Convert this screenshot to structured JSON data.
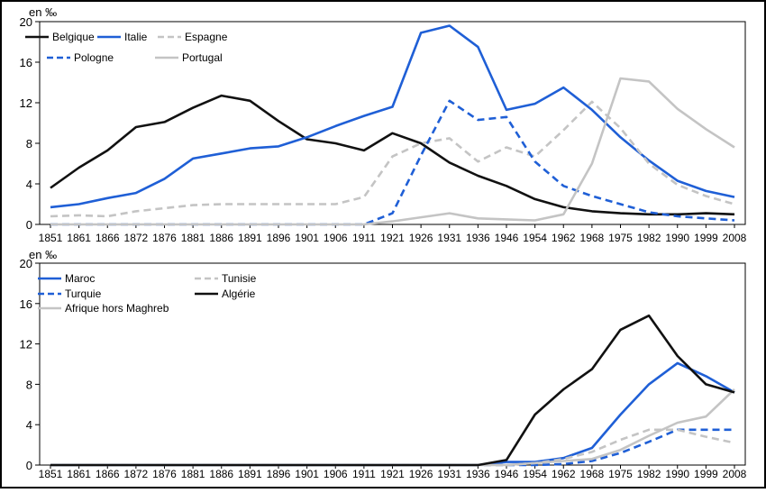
{
  "chart_data": [
    {
      "type": "line",
      "unit_label": "en ‰",
      "ylim": [
        0,
        20
      ],
      "yticks": [
        0,
        4,
        8,
        12,
        16,
        20
      ],
      "categories": [
        "1851",
        "1861",
        "1866",
        "1872",
        "1876",
        "1881",
        "1886",
        "1891",
        "1896",
        "1901",
        "1906",
        "1911",
        "1921",
        "1926",
        "1931",
        "1936",
        "1946",
        "1954",
        "1962",
        "1968",
        "1975",
        "1982",
        "1990",
        "1999",
        "2008"
      ],
      "x_positions": [
        1851,
        1861,
        1866,
        1872,
        1876,
        1881,
        1886,
        1891,
        1896,
        1901,
        1906,
        1911,
        1921,
        1926,
        1931,
        1936,
        1946,
        1954,
        1962,
        1968,
        1975,
        1982,
        1990,
        1999,
        2008
      ],
      "legend_position": "top-left",
      "series": [
        {
          "name": "Belgique",
          "color": "#111111",
          "dash": "solid",
          "x": [
            1851,
            1861,
            1866,
            1872,
            1876,
            1881,
            1886,
            1891,
            1896,
            1901,
            1906,
            1911,
            1921,
            1926,
            1931,
            1936,
            1946,
            1954,
            1962,
            1968,
            1975,
            1982,
            1990,
            1999,
            2008
          ],
          "values": [
            3.6,
            5.6,
            7.3,
            9.6,
            10.1,
            11.5,
            12.7,
            12.2,
            10.2,
            8.4,
            8.0,
            7.3,
            9.0,
            8.0,
            6.1,
            4.8,
            3.8,
            2.5,
            1.7,
            1.3,
            1.1,
            1.0,
            1.0,
            1.1,
            1.0
          ]
        },
        {
          "name": "Italie",
          "color": "#1f5fd6",
          "dash": "solid",
          "x": [
            1851,
            1861,
            1866,
            1872,
            1876,
            1881,
            1886,
            1891,
            1896,
            1901,
            1906,
            1911,
            1921,
            1926,
            1931,
            1936,
            1946,
            1954,
            1962,
            1968,
            1975,
            1982,
            1990,
            1999,
            2008
          ],
          "values": [
            1.7,
            2.0,
            2.6,
            3.1,
            4.5,
            6.5,
            7.0,
            7.5,
            7.7,
            8.6,
            9.7,
            10.7,
            11.6,
            18.9,
            19.6,
            17.5,
            11.3,
            11.9,
            13.5,
            11.3,
            8.6,
            6.3,
            4.3,
            3.3,
            2.7
          ]
        },
        {
          "name": "Espagne",
          "color": "#c4c4c4",
          "dash": "dashed",
          "x": [
            1851,
            1861,
            1866,
            1872,
            1876,
            1881,
            1886,
            1891,
            1896,
            1901,
            1906,
            1911,
            1921,
            1926,
            1931,
            1936,
            1946,
            1954,
            1962,
            1968,
            1975,
            1982,
            1990,
            1999,
            2008
          ],
          "values": [
            0.8,
            0.9,
            0.8,
            1.3,
            1.6,
            1.9,
            2.0,
            2.0,
            2.0,
            2.0,
            2.0,
            2.7,
            6.7,
            8.0,
            8.5,
            6.2,
            7.6,
            6.7,
            9.3,
            12.1,
            9.5,
            6.0,
            3.9,
            2.8,
            2.0
          ]
        },
        {
          "name": "Pologne",
          "color": "#1f5fd6",
          "dash": "dashed",
          "x": [
            1851,
            1861,
            1866,
            1872,
            1876,
            1881,
            1886,
            1891,
            1896,
            1901,
            1906,
            1911,
            1921,
            1926,
            1931,
            1936,
            1946,
            1954,
            1962,
            1968,
            1975,
            1982,
            1990,
            1999,
            2008
          ],
          "values": [
            0,
            0,
            0,
            0,
            0,
            0,
            0,
            0,
            0,
            0,
            0,
            0,
            1.1,
            6.8,
            12.2,
            10.3,
            10.6,
            6.2,
            3.8,
            2.8,
            2.0,
            1.2,
            0.8,
            0.6,
            0.4
          ]
        },
        {
          "name": "Portugal",
          "color": "#c4c4c4",
          "dash": "solid",
          "x": [
            1851,
            1861,
            1866,
            1872,
            1876,
            1881,
            1886,
            1891,
            1896,
            1901,
            1906,
            1911,
            1921,
            1926,
            1931,
            1936,
            1946,
            1954,
            1962,
            1968,
            1975,
            1982,
            1990,
            1999,
            2008
          ],
          "values": [
            0,
            0,
            0,
            0,
            0,
            0,
            0,
            0,
            0,
            0,
            0,
            0,
            0.3,
            0.7,
            1.1,
            0.6,
            0.5,
            0.4,
            1.0,
            6.0,
            14.4,
            14.1,
            11.4,
            9.4,
            7.6
          ]
        }
      ]
    },
    {
      "type": "line",
      "unit_label": "en ‰",
      "ylim": [
        0,
        20
      ],
      "yticks": [
        0,
        4,
        8,
        12,
        16,
        20
      ],
      "categories": [
        "1851",
        "1861",
        "1866",
        "1872",
        "1876",
        "1881",
        "1886",
        "1891",
        "1896",
        "1901",
        "1906",
        "1911",
        "1921",
        "1926",
        "1931",
        "1936",
        "1946",
        "1954",
        "1962",
        "1968",
        "1975",
        "1982",
        "1990",
        "1999",
        "2008"
      ],
      "x_positions": [
        1851,
        1861,
        1866,
        1872,
        1876,
        1881,
        1886,
        1891,
        1896,
        1901,
        1906,
        1911,
        1921,
        1926,
        1931,
        1936,
        1946,
        1954,
        1962,
        1968,
        1975,
        1982,
        1990,
        1999,
        2008
      ],
      "legend_position": "top-left",
      "series": [
        {
          "name": "Maroc",
          "color": "#1f5fd6",
          "dash": "solid",
          "x": [
            1851,
            1936,
            1946,
            1954,
            1962,
            1968,
            1975,
            1982,
            1990,
            1999,
            2008
          ],
          "values": [
            0,
            0,
            0.3,
            0.3,
            0.7,
            1.7,
            5.0,
            8.0,
            10.1,
            8.8,
            7.2
          ]
        },
        {
          "name": "Turquie",
          "color": "#1f5fd6",
          "dash": "dashed",
          "x": [
            1851,
            1954,
            1962,
            1968,
            1975,
            1982,
            1990,
            1999,
            2008
          ],
          "values": [
            0,
            0,
            0.1,
            0.4,
            1.2,
            2.3,
            3.5,
            3.5,
            3.5
          ]
        },
        {
          "name": "Afrique hors Maghreb",
          "color": "#c4c4c4",
          "dash": "solid",
          "x": [
            1851,
            1946,
            1954,
            1962,
            1968,
            1975,
            1982,
            1990,
            1999,
            2008
          ],
          "values": [
            0,
            0,
            0.2,
            0.4,
            0.6,
            1.5,
            2.9,
            4.2,
            4.8,
            7.5
          ]
        },
        {
          "name": "Tunisie",
          "color": "#c4c4c4",
          "dash": "dashed",
          "x": [
            1851,
            1946,
            1954,
            1962,
            1968,
            1975,
            1982,
            1990,
            1999,
            2008
          ],
          "values": [
            0,
            0,
            0.2,
            0.6,
            1.3,
            2.5,
            3.5,
            3.5,
            2.8,
            2.2
          ]
        },
        {
          "name": "Algérie",
          "color": "#111111",
          "dash": "solid",
          "x": [
            1851,
            1936,
            1946,
            1954,
            1962,
            1968,
            1975,
            1982,
            1990,
            1999,
            2008
          ],
          "values": [
            0,
            0,
            0.5,
            5.0,
            7.5,
            9.5,
            13.4,
            14.8,
            10.8,
            8.0,
            7.2
          ]
        }
      ]
    }
  ]
}
